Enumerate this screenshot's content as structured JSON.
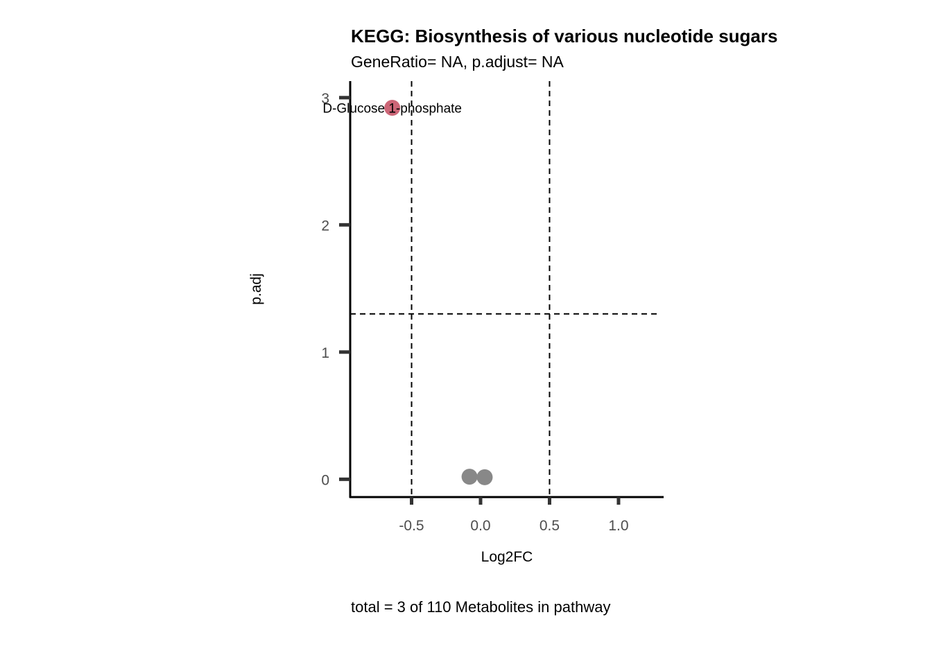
{
  "chart_data": {
    "type": "scatter",
    "title": "KEGG: Biosynthesis of various nucleotide sugars",
    "subtitle": "GeneRatio= NA, p.adjust= NA",
    "xlabel": "Log2FC",
    "ylabel": "p.adj",
    "caption": "total = 3 of 110 Metabolites in pathway",
    "xlim": [
      -0.945,
      1.327
    ],
    "ylim": [
      -0.14,
      3.13
    ],
    "x_ticks": [
      -0.5,
      0.0,
      0.5,
      1.0
    ],
    "x_tick_labels": [
      "-0.5",
      "0.0",
      "0.5",
      "1.0"
    ],
    "y_ticks": [
      0,
      1,
      2,
      3
    ],
    "y_tick_labels": [
      "0",
      "1",
      "2",
      "3"
    ],
    "vlines": [
      -0.5,
      0.5
    ],
    "hlines": [
      1.3
    ],
    "grid": false,
    "points": [
      {
        "x": -0.64,
        "y": 2.92,
        "label": "D-Glucose 1-phosphate",
        "color": "#CC6677"
      },
      {
        "x": -0.08,
        "y": 0.02,
        "label": "",
        "color": "#888888"
      },
      {
        "x": 0.03,
        "y": 0.016,
        "label": "",
        "color": "#888888"
      }
    ]
  }
}
